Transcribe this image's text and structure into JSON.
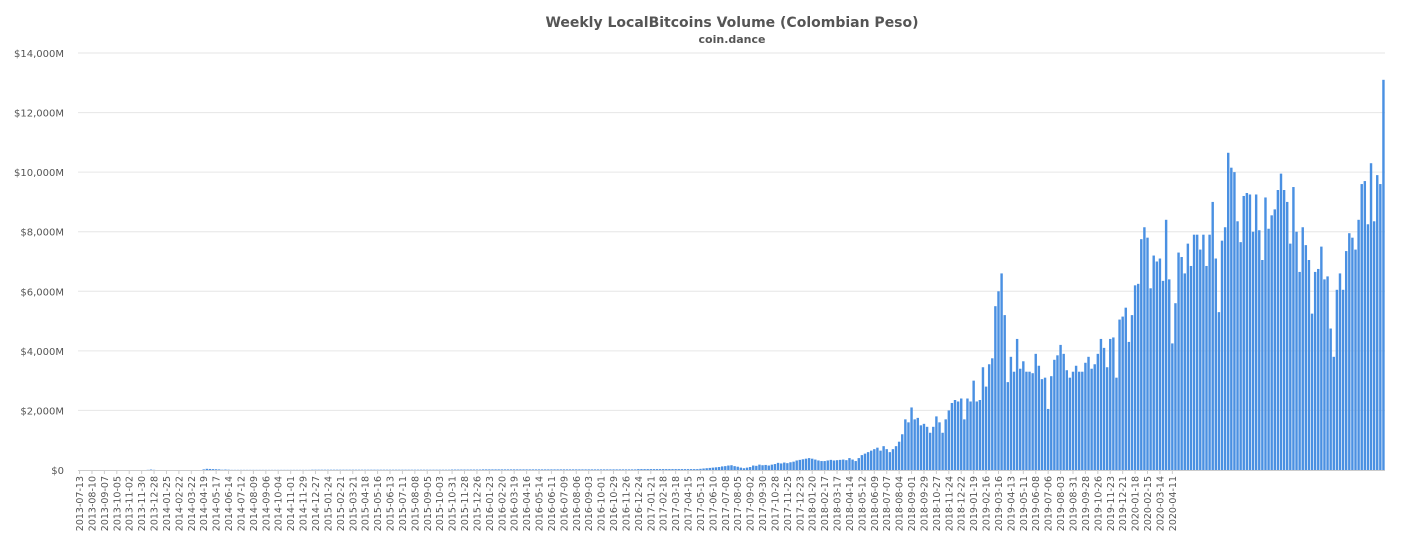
{
  "chart_data": {
    "type": "bar",
    "title": "Weekly LocalBitcoins Volume (Colombian Peso)",
    "subtitle": "coin.dance",
    "xlabel": "",
    "ylabel": "",
    "ylim": [
      0,
      14000
    ],
    "unit": "M",
    "yticks": [
      "$0",
      "$2,000M",
      "$4,000M",
      "$6,000M",
      "$8,000M",
      "$10,000M",
      "$12,000M",
      "$14,000M"
    ],
    "grid": true,
    "legend": "none",
    "bar_color": "#4a90e2",
    "start_date": "2013-07-13",
    "x_tick_labels": [
      "2013-07-13",
      "2013-08-10",
      "2013-09-07",
      "2013-10-05",
      "2013-11-02",
      "2013-11-30",
      "2013-12-28",
      "2014-01-25",
      "2014-02-22",
      "2014-03-22",
      "2014-04-19",
      "2014-05-17",
      "2014-06-14",
      "2014-07-12",
      "2014-08-09",
      "2014-09-06",
      "2014-10-04",
      "2014-11-01",
      "2014-11-29",
      "2014-12-27",
      "2015-01-24",
      "2015-02-21",
      "2015-03-21",
      "2015-04-18",
      "2015-05-16",
      "2015-06-13",
      "2015-07-11",
      "2015-08-08",
      "2015-09-05",
      "2015-10-03",
      "2015-10-31",
      "2015-11-28",
      "2015-12-26",
      "2016-01-23",
      "2016-02-20",
      "2016-03-19",
      "2016-04-16",
      "2016-05-14",
      "2016-06-11",
      "2016-07-09",
      "2016-08-06",
      "2016-09-03",
      "2016-10-01",
      "2016-10-29",
      "2016-11-26",
      "2016-12-24",
      "2017-01-21",
      "2017-02-18",
      "2017-03-18",
      "2017-04-15",
      "2017-05-13",
      "2017-06-10",
      "2017-07-08",
      "2017-08-05",
      "2017-09-02",
      "2017-09-30",
      "2017-10-28",
      "2017-11-25",
      "2017-12-23",
      "2018-01-20",
      "2018-02-17",
      "2018-03-17",
      "2018-04-14",
      "2018-05-12",
      "2018-06-09",
      "2018-07-07",
      "2018-08-04",
      "2018-09-01",
      "2018-09-29",
      "2018-10-27",
      "2018-11-24",
      "2018-12-22",
      "2019-01-19",
      "2019-02-16",
      "2019-03-16",
      "2019-04-13",
      "2019-05-11",
      "2019-06-08",
      "2019-07-06",
      "2019-08-03",
      "2019-08-31",
      "2019-09-28",
      "2019-10-26",
      "2019-11-23",
      "2019-12-21",
      "2020-01-18",
      "2020-02-15",
      "2020-03-14",
      "2020-04-11"
    ],
    "values": [
      0,
      0,
      0,
      0,
      0,
      0,
      0,
      0,
      0,
      0,
      0,
      0,
      0,
      0,
      0,
      0,
      0,
      0,
      0,
      0,
      0,
      0,
      5,
      15,
      5,
      0,
      0,
      0,
      0,
      0,
      0,
      0,
      0,
      0,
      0,
      0,
      0,
      0,
      0,
      0,
      20,
      40,
      35,
      30,
      25,
      20,
      10,
      15,
      10,
      5,
      5,
      5,
      5,
      5,
      5,
      5,
      5,
      5,
      5,
      5,
      5,
      5,
      5,
      5,
      5,
      5,
      5,
      5,
      5,
      5,
      5,
      5,
      5,
      5,
      5,
      10,
      10,
      10,
      10,
      10,
      10,
      10,
      10,
      10,
      10,
      10,
      10,
      10,
      10,
      10,
      10,
      10,
      10,
      10,
      10,
      10,
      10,
      10,
      10,
      10,
      10,
      10,
      10,
      10,
      10,
      10,
      10,
      10,
      10,
      10,
      10,
      10,
      10,
      10,
      10,
      10,
      10,
      10,
      10,
      10,
      15,
      15,
      15,
      15,
      15,
      15,
      15,
      15,
      15,
      15,
      20,
      20,
      20,
      20,
      20,
      20,
      20,
      20,
      20,
      20,
      20,
      20,
      20,
      20,
      20,
      20,
      20,
      20,
      20,
      20,
      20,
      20,
      20,
      20,
      20,
      20,
      20,
      20,
      20,
      20,
      20,
      20,
      20,
      20,
      20,
      20,
      20,
      20,
      20,
      20,
      20,
      20,
      20,
      20,
      20,
      20,
      20,
      20,
      20,
      20,
      30,
      30,
      30,
      30,
      30,
      30,
      30,
      30,
      30,
      30,
      30,
      30,
      30,
      30,
      30,
      30,
      30,
      30,
      30,
      30,
      40,
      50,
      60,
      70,
      80,
      90,
      100,
      120,
      130,
      150,
      160,
      130,
      110,
      80,
      60,
      80,
      100,
      150,
      140,
      180,
      160,
      170,
      150,
      180,
      200,
      240,
      220,
      250,
      230,
      260,
      280,
      320,
      340,
      360,
      380,
      400,
      380,
      350,
      320,
      300,
      300,
      320,
      340,
      320,
      330,
      340,
      350,
      330,
      400,
      350,
      300,
      400,
      500,
      550,
      600,
      650,
      700,
      750,
      650,
      800,
      700,
      600,
      700,
      800,
      950,
      1200,
      1700,
      1600,
      2100,
      1700,
      1750,
      1500,
      1550,
      1450,
      1250,
      1450,
      1800,
      1600,
      1250,
      1700,
      2000,
      2250,
      2350,
      2300,
      2400,
      1700,
      2400,
      2300,
      3000,
      2300,
      2350,
      3450,
      2800,
      3550,
      3750,
      5500,
      6000,
      6600,
      5200,
      2950,
      3800,
      3300,
      4400,
      3400,
      3650,
      3300,
      3300,
      3250,
      3900,
      3500,
      3050,
      3100,
      2050,
      3150,
      3700,
      3850,
      4200,
      3900,
      3350,
      3100,
      3300,
      3500,
      3300,
      3300,
      3600,
      3800,
      3400,
      3550,
      3900,
      4400,
      4100,
      3450,
      4400,
      4450,
      3100,
      5050,
      5150,
      5450,
      4300,
      5200,
      6200,
      6250,
      7750,
      8150,
      7800,
      6100,
      7200,
      7000,
      7100,
      6350,
      8400,
      6400,
      4250,
      5600,
      7300,
      7150,
      6600,
      7600,
      6850,
      7900,
      7900,
      7400,
      7900,
      6850,
      7900,
      9000,
      7100,
      5300,
      7700,
      8150,
      10650,
      10150,
      10000,
      8350,
      7650,
      9200,
      9300,
      9250,
      8000,
      9250,
      8050,
      7050,
      9150,
      8100,
      8550,
      8750,
      9400,
      9950,
      9400,
      9000,
      7600,
      9500,
      8000,
      6650,
      8150,
      7550,
      7050,
      5250,
      6650,
      6750,
      7500,
      6400,
      6500,
      4750,
      3800,
      6050,
      6600,
      6050,
      7350,
      7950,
      7800,
      7400,
      8400,
      9600,
      9700,
      8250,
      10300,
      8350,
      9900,
      9600,
      13100
    ]
  }
}
